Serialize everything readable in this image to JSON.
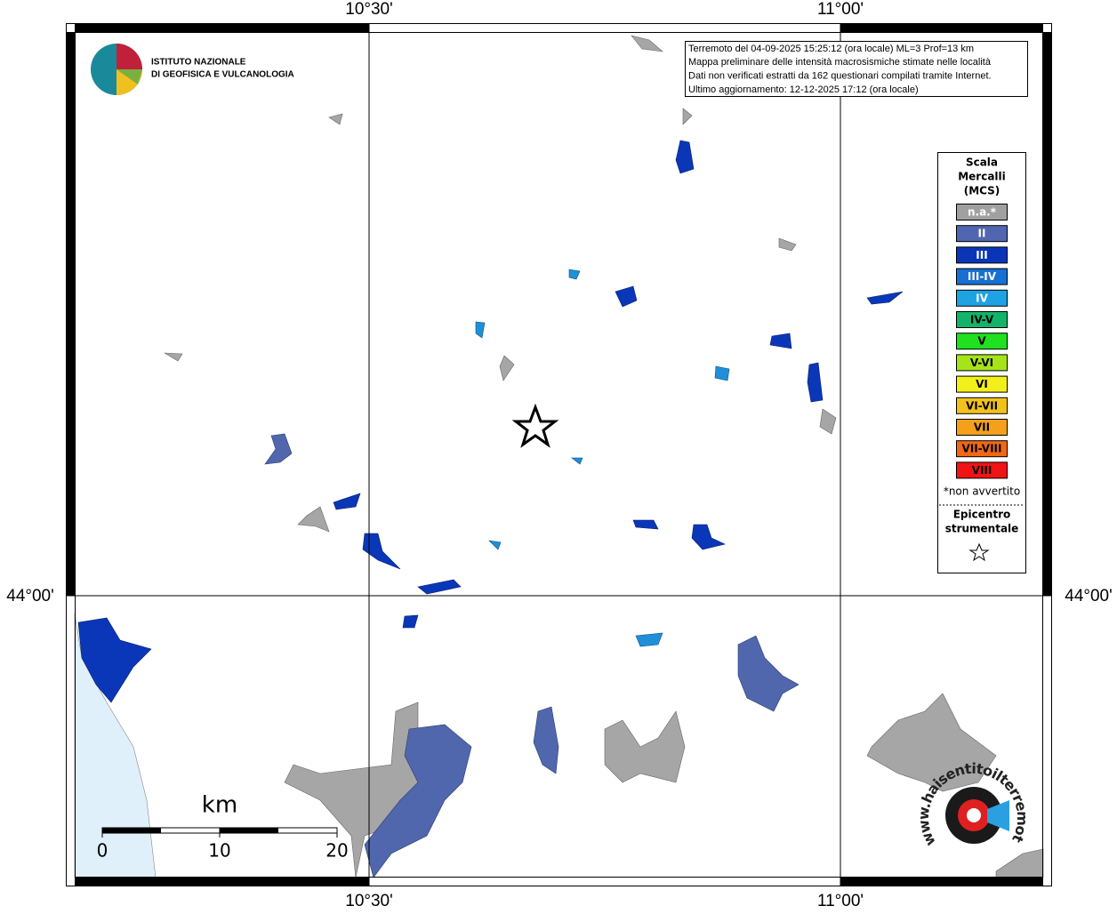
{
  "axes": {
    "lon_1": "10°30'",
    "lon_2": "11°00'",
    "lat_1": "44°00'"
  },
  "logo": {
    "line1": "ISTITUTO NAZIONALE",
    "line2": "DI GEOFISICA E VULCANOLOGIA"
  },
  "info": [
    "Terremoto del 04-09-2025 15:25:12 (ora locale) ML=3 Prof=13 km",
    "Mappa preliminare delle intensità macrosismiche stimate nelle località",
    "Dati non verificati estratti da 162 questionari compilati tramite Internet.",
    "Ultimo aggiornamento: 12-12-2025 17:12 (ora locale)"
  ],
  "legend": {
    "title": [
      "Scala",
      "Mercalli",
      "(MCS)"
    ],
    "items": [
      {
        "label": "n.a.*",
        "color": "#a0a0a0"
      },
      {
        "label": "II",
        "color": "#5066b0"
      },
      {
        "label": "III",
        "color": "#0a35b8"
      },
      {
        "label": "III-IV",
        "color": "#1770d2"
      },
      {
        "label": "IV",
        "color": "#1fa2e2"
      },
      {
        "label": "IV-V",
        "color": "#12b46a"
      },
      {
        "label": "V",
        "color": "#20e020"
      },
      {
        "label": "V-VI",
        "color": "#a6e41a"
      },
      {
        "label": "VI",
        "color": "#f3ef1a"
      },
      {
        "label": "VI-VII",
        "color": "#f2c21c"
      },
      {
        "label": "VII",
        "color": "#f4a01a"
      },
      {
        "label": "VII-VIII",
        "color": "#f06816"
      },
      {
        "label": "VIII",
        "color": "#f01414"
      }
    ],
    "note": "*non avvertito",
    "epicenter": [
      "Epicentro",
      "strumentale"
    ]
  },
  "scale": {
    "unit": "km",
    "ticks": [
      "0",
      "10",
      "20"
    ]
  },
  "watermark": "www.haisentitoilterremoto.it"
}
